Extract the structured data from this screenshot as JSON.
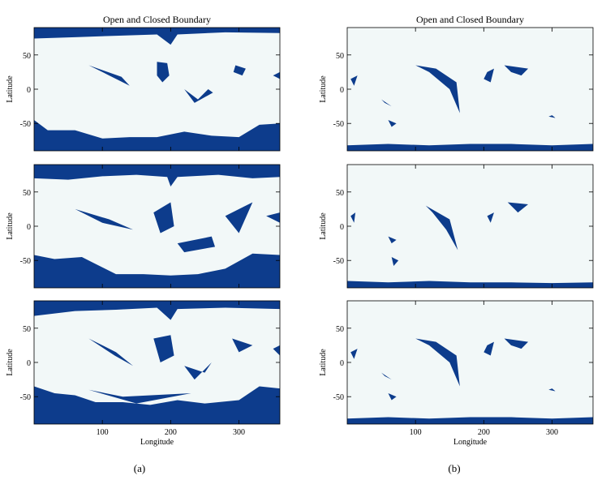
{
  "figure": {
    "subcaptions": [
      "(a)",
      "(b)"
    ]
  },
  "colors": {
    "open": "#0d3c8c",
    "closed": "#f2f8f8",
    "axis": "#000000"
  },
  "chart_data": [
    {
      "type": "heatmap",
      "panel": "a1",
      "title": "Open and Closed Boundary",
      "xlabel": "",
      "ylabel": "Latitude",
      "xlim": [
        0,
        360
      ],
      "ylim": [
        -90,
        90
      ],
      "yticks": [
        "50",
        "0",
        "-50"
      ],
      "xticks": [],
      "values": {
        "north_cap_latitude_profile": [
          [
            0,
            74
          ],
          [
            60,
            76
          ],
          [
            120,
            78
          ],
          [
            180,
            80
          ],
          [
            200,
            65
          ],
          [
            210,
            80
          ],
          [
            280,
            83
          ],
          [
            360,
            82
          ]
        ],
        "south_cap_latitude_profile": [
          [
            0,
            -45
          ],
          [
            20,
            -60
          ],
          [
            60,
            -60
          ],
          [
            100,
            -72
          ],
          [
            140,
            -70
          ],
          [
            180,
            -70
          ],
          [
            220,
            -62
          ],
          [
            260,
            -68
          ],
          [
            300,
            -70
          ],
          [
            330,
            -52
          ],
          [
            360,
            -50
          ]
        ],
        "open_regions_lonlat": [
          [
            [
              80,
              35
            ],
            [
              110,
              20
            ],
            [
              140,
              5
            ],
            [
              128,
              18
            ]
          ],
          [
            [
              180,
              40
            ],
            [
              195,
              38
            ],
            [
              198,
              20
            ],
            [
              188,
              10
            ],
            [
              180,
              20
            ]
          ],
          [
            [
              220,
              0
            ],
            [
              240,
              -15
            ],
            [
              255,
              0
            ],
            [
              262,
              -5
            ],
            [
              235,
              -20
            ]
          ],
          [
            [
              295,
              35
            ],
            [
              310,
              30
            ],
            [
              305,
              20
            ],
            [
              292,
              25
            ]
          ],
          [
            [
              350,
              20
            ],
            [
              360,
              25
            ],
            [
              360,
              15
            ]
          ]
        ]
      }
    },
    {
      "type": "heatmap",
      "panel": "a2",
      "title": "",
      "xlabel": "",
      "ylabel": "Latitude",
      "xlim": [
        0,
        360
      ],
      "ylim": [
        -90,
        90
      ],
      "yticks": [
        "50",
        "0",
        "-50"
      ],
      "xticks": [],
      "values": {
        "north_cap_latitude_profile": [
          [
            0,
            70
          ],
          [
            50,
            68
          ],
          [
            100,
            73
          ],
          [
            150,
            75
          ],
          [
            195,
            72
          ],
          [
            200,
            58
          ],
          [
            210,
            72
          ],
          [
            270,
            75
          ],
          [
            320,
            70
          ],
          [
            360,
            72
          ]
        ],
        "south_cap_latitude_profile": [
          [
            0,
            -42
          ],
          [
            30,
            -48
          ],
          [
            70,
            -45
          ],
          [
            90,
            -55
          ],
          [
            120,
            -70
          ],
          [
            160,
            -70
          ],
          [
            200,
            -72
          ],
          [
            240,
            -70
          ],
          [
            280,
            -62
          ],
          [
            320,
            -40
          ],
          [
            360,
            -42
          ]
        ],
        "open_regions_lonlat": [
          [
            [
              60,
              25
            ],
            [
              110,
              10
            ],
            [
              145,
              -5
            ],
            [
              100,
              5
            ]
          ],
          [
            [
              175,
              20
            ],
            [
              200,
              35
            ],
            [
              205,
              0
            ],
            [
              185,
              -10
            ]
          ],
          [
            [
              210,
              -25
            ],
            [
              260,
              -15
            ],
            [
              265,
              -30
            ],
            [
              220,
              -38
            ]
          ],
          [
            [
              280,
              15
            ],
            [
              320,
              35
            ],
            [
              300,
              -10
            ]
          ],
          [
            [
              340,
              15
            ],
            [
              360,
              20
            ],
            [
              360,
              5
            ]
          ]
        ]
      }
    },
    {
      "type": "heatmap",
      "panel": "a3",
      "title": "",
      "xlabel": "Longitude",
      "ylabel": "Latitude",
      "xlim": [
        0,
        360
      ],
      "ylim": [
        -90,
        90
      ],
      "xticks": [
        "100",
        "200",
        "300"
      ],
      "yticks": [
        "50",
        "0",
        "-50"
      ],
      "values": {
        "north_cap_latitude_profile": [
          [
            0,
            68
          ],
          [
            60,
            75
          ],
          [
            120,
            77
          ],
          [
            180,
            80
          ],
          [
            200,
            62
          ],
          [
            210,
            78
          ],
          [
            280,
            80
          ],
          [
            360,
            78
          ]
        ],
        "south_cap_latitude_profile": [
          [
            0,
            -35
          ],
          [
            30,
            -45
          ],
          [
            60,
            -48
          ],
          [
            90,
            -58
          ],
          [
            130,
            -58
          ],
          [
            170,
            -62
          ],
          [
            210,
            -55
          ],
          [
            250,
            -60
          ],
          [
            300,
            -55
          ],
          [
            330,
            -35
          ],
          [
            360,
            -38
          ]
        ],
        "open_regions_lonlat": [
          [
            [
              80,
              35
            ],
            [
              120,
              15
            ],
            [
              145,
              -5
            ],
            [
              118,
              10
            ]
          ],
          [
            [
              175,
              35
            ],
            [
              200,
              40
            ],
            [
              205,
              10
            ],
            [
              185,
              0
            ]
          ],
          [
            [
              220,
              -5
            ],
            [
              250,
              -15
            ],
            [
              260,
              0
            ],
            [
              235,
              -25
            ]
          ],
          [
            [
              290,
              35
            ],
            [
              320,
              25
            ],
            [
              300,
              15
            ]
          ],
          [
            [
              80,
              -40
            ],
            [
              150,
              -60
            ],
            [
              230,
              -45
            ],
            [
              130,
              -50
            ]
          ],
          [
            [
              350,
              20
            ],
            [
              360,
              25
            ],
            [
              360,
              10
            ]
          ]
        ]
      }
    },
    {
      "type": "heatmap",
      "panel": "b1",
      "title": "Open and Closed Boundary",
      "xlabel": "",
      "ylabel": "Latitude",
      "xlim": [
        0,
        360
      ],
      "ylim": [
        -90,
        90
      ],
      "yticks": [
        "50",
        "0",
        "-50"
      ],
      "xticks": [],
      "values": {
        "north_cap_latitude_profile": [],
        "south_cap_latitude_profile": [
          [
            0,
            -82
          ],
          [
            60,
            -80
          ],
          [
            120,
            -82
          ],
          [
            180,
            -80
          ],
          [
            240,
            -80
          ],
          [
            300,
            -82
          ],
          [
            360,
            -80
          ]
        ],
        "open_regions_lonlat": [
          [
            [
              100,
              35
            ],
            [
              130,
              30
            ],
            [
              160,
              10
            ],
            [
              165,
              -35
            ],
            [
              150,
              0
            ],
            [
              120,
              25
            ]
          ],
          [
            [
              205,
              25
            ],
            [
              215,
              30
            ],
            [
              210,
              10
            ],
            [
              200,
              15
            ]
          ],
          [
            [
              230,
              35
            ],
            [
              265,
              30
            ],
            [
              255,
              20
            ],
            [
              240,
              25
            ]
          ],
          [
            [
              50,
              -15
            ],
            [
              65,
              -25
            ],
            [
              55,
              -20
            ]
          ],
          [
            [
              60,
              -45
            ],
            [
              72,
              -50
            ],
            [
              65,
              -55
            ]
          ],
          [
            [
              5,
              15
            ],
            [
              15,
              20
            ],
            [
              10,
              5
            ]
          ],
          [
            [
              295,
              -40
            ],
            [
              305,
              -42
            ],
            [
              300,
              -38
            ]
          ]
        ]
      }
    },
    {
      "type": "heatmap",
      "panel": "b2",
      "title": "",
      "xlabel": "",
      "ylabel": "Latitude",
      "xlim": [
        0,
        360
      ],
      "ylim": [
        -90,
        90
      ],
      "yticks": [
        "50",
        "0",
        "-50"
      ],
      "xticks": [],
      "values": {
        "north_cap_latitude_profile": [],
        "south_cap_latitude_profile": [
          [
            0,
            -80
          ],
          [
            60,
            -82
          ],
          [
            120,
            -80
          ],
          [
            180,
            -82
          ],
          [
            240,
            -82
          ],
          [
            300,
            -83
          ],
          [
            360,
            -82
          ]
        ],
        "open_regions_lonlat": [
          [
            [
              115,
              30
            ],
            [
              150,
              10
            ],
            [
              162,
              -35
            ],
            [
              145,
              -5
            ],
            [
              125,
              20
            ]
          ],
          [
            [
              205,
              15
            ],
            [
              215,
              20
            ],
            [
              210,
              5
            ]
          ],
          [
            [
              235,
              35
            ],
            [
              265,
              32
            ],
            [
              250,
              20
            ]
          ],
          [
            [
              60,
              -15
            ],
            [
              72,
              -20
            ],
            [
              65,
              -25
            ]
          ],
          [
            [
              65,
              -45
            ],
            [
              75,
              -50
            ],
            [
              68,
              -58
            ]
          ],
          [
            [
              5,
              15
            ],
            [
              12,
              20
            ],
            [
              10,
              5
            ]
          ]
        ]
      }
    },
    {
      "type": "heatmap",
      "panel": "b3",
      "title": "",
      "xlabel": "Longitude",
      "ylabel": "Latitude",
      "xlim": [
        0,
        360
      ],
      "ylim": [
        -90,
        90
      ],
      "xticks": [
        "100",
        "200",
        "300"
      ],
      "yticks": [
        "50",
        "0",
        "-50"
      ],
      "values": {
        "north_cap_latitude_profile": [],
        "south_cap_latitude_profile": [
          [
            0,
            -82
          ],
          [
            60,
            -80
          ],
          [
            120,
            -82
          ],
          [
            180,
            -80
          ],
          [
            240,
            -80
          ],
          [
            300,
            -82
          ],
          [
            360,
            -80
          ]
        ],
        "open_regions_lonlat": [
          [
            [
              100,
              35
            ],
            [
              130,
              30
            ],
            [
              160,
              10
            ],
            [
              165,
              -35
            ],
            [
              150,
              0
            ],
            [
              120,
              25
            ]
          ],
          [
            [
              205,
              25
            ],
            [
              215,
              30
            ],
            [
              210,
              10
            ],
            [
              200,
              15
            ]
          ],
          [
            [
              230,
              35
            ],
            [
              265,
              30
            ],
            [
              255,
              20
            ],
            [
              240,
              25
            ]
          ],
          [
            [
              50,
              -15
            ],
            [
              65,
              -25
            ],
            [
              55,
              -20
            ]
          ],
          [
            [
              60,
              -45
            ],
            [
              72,
              -50
            ],
            [
              65,
              -55
            ]
          ],
          [
            [
              5,
              15
            ],
            [
              15,
              20
            ],
            [
              10,
              5
            ]
          ],
          [
            [
              295,
              -40
            ],
            [
              305,
              -42
            ],
            [
              300,
              -38
            ]
          ]
        ]
      }
    }
  ]
}
